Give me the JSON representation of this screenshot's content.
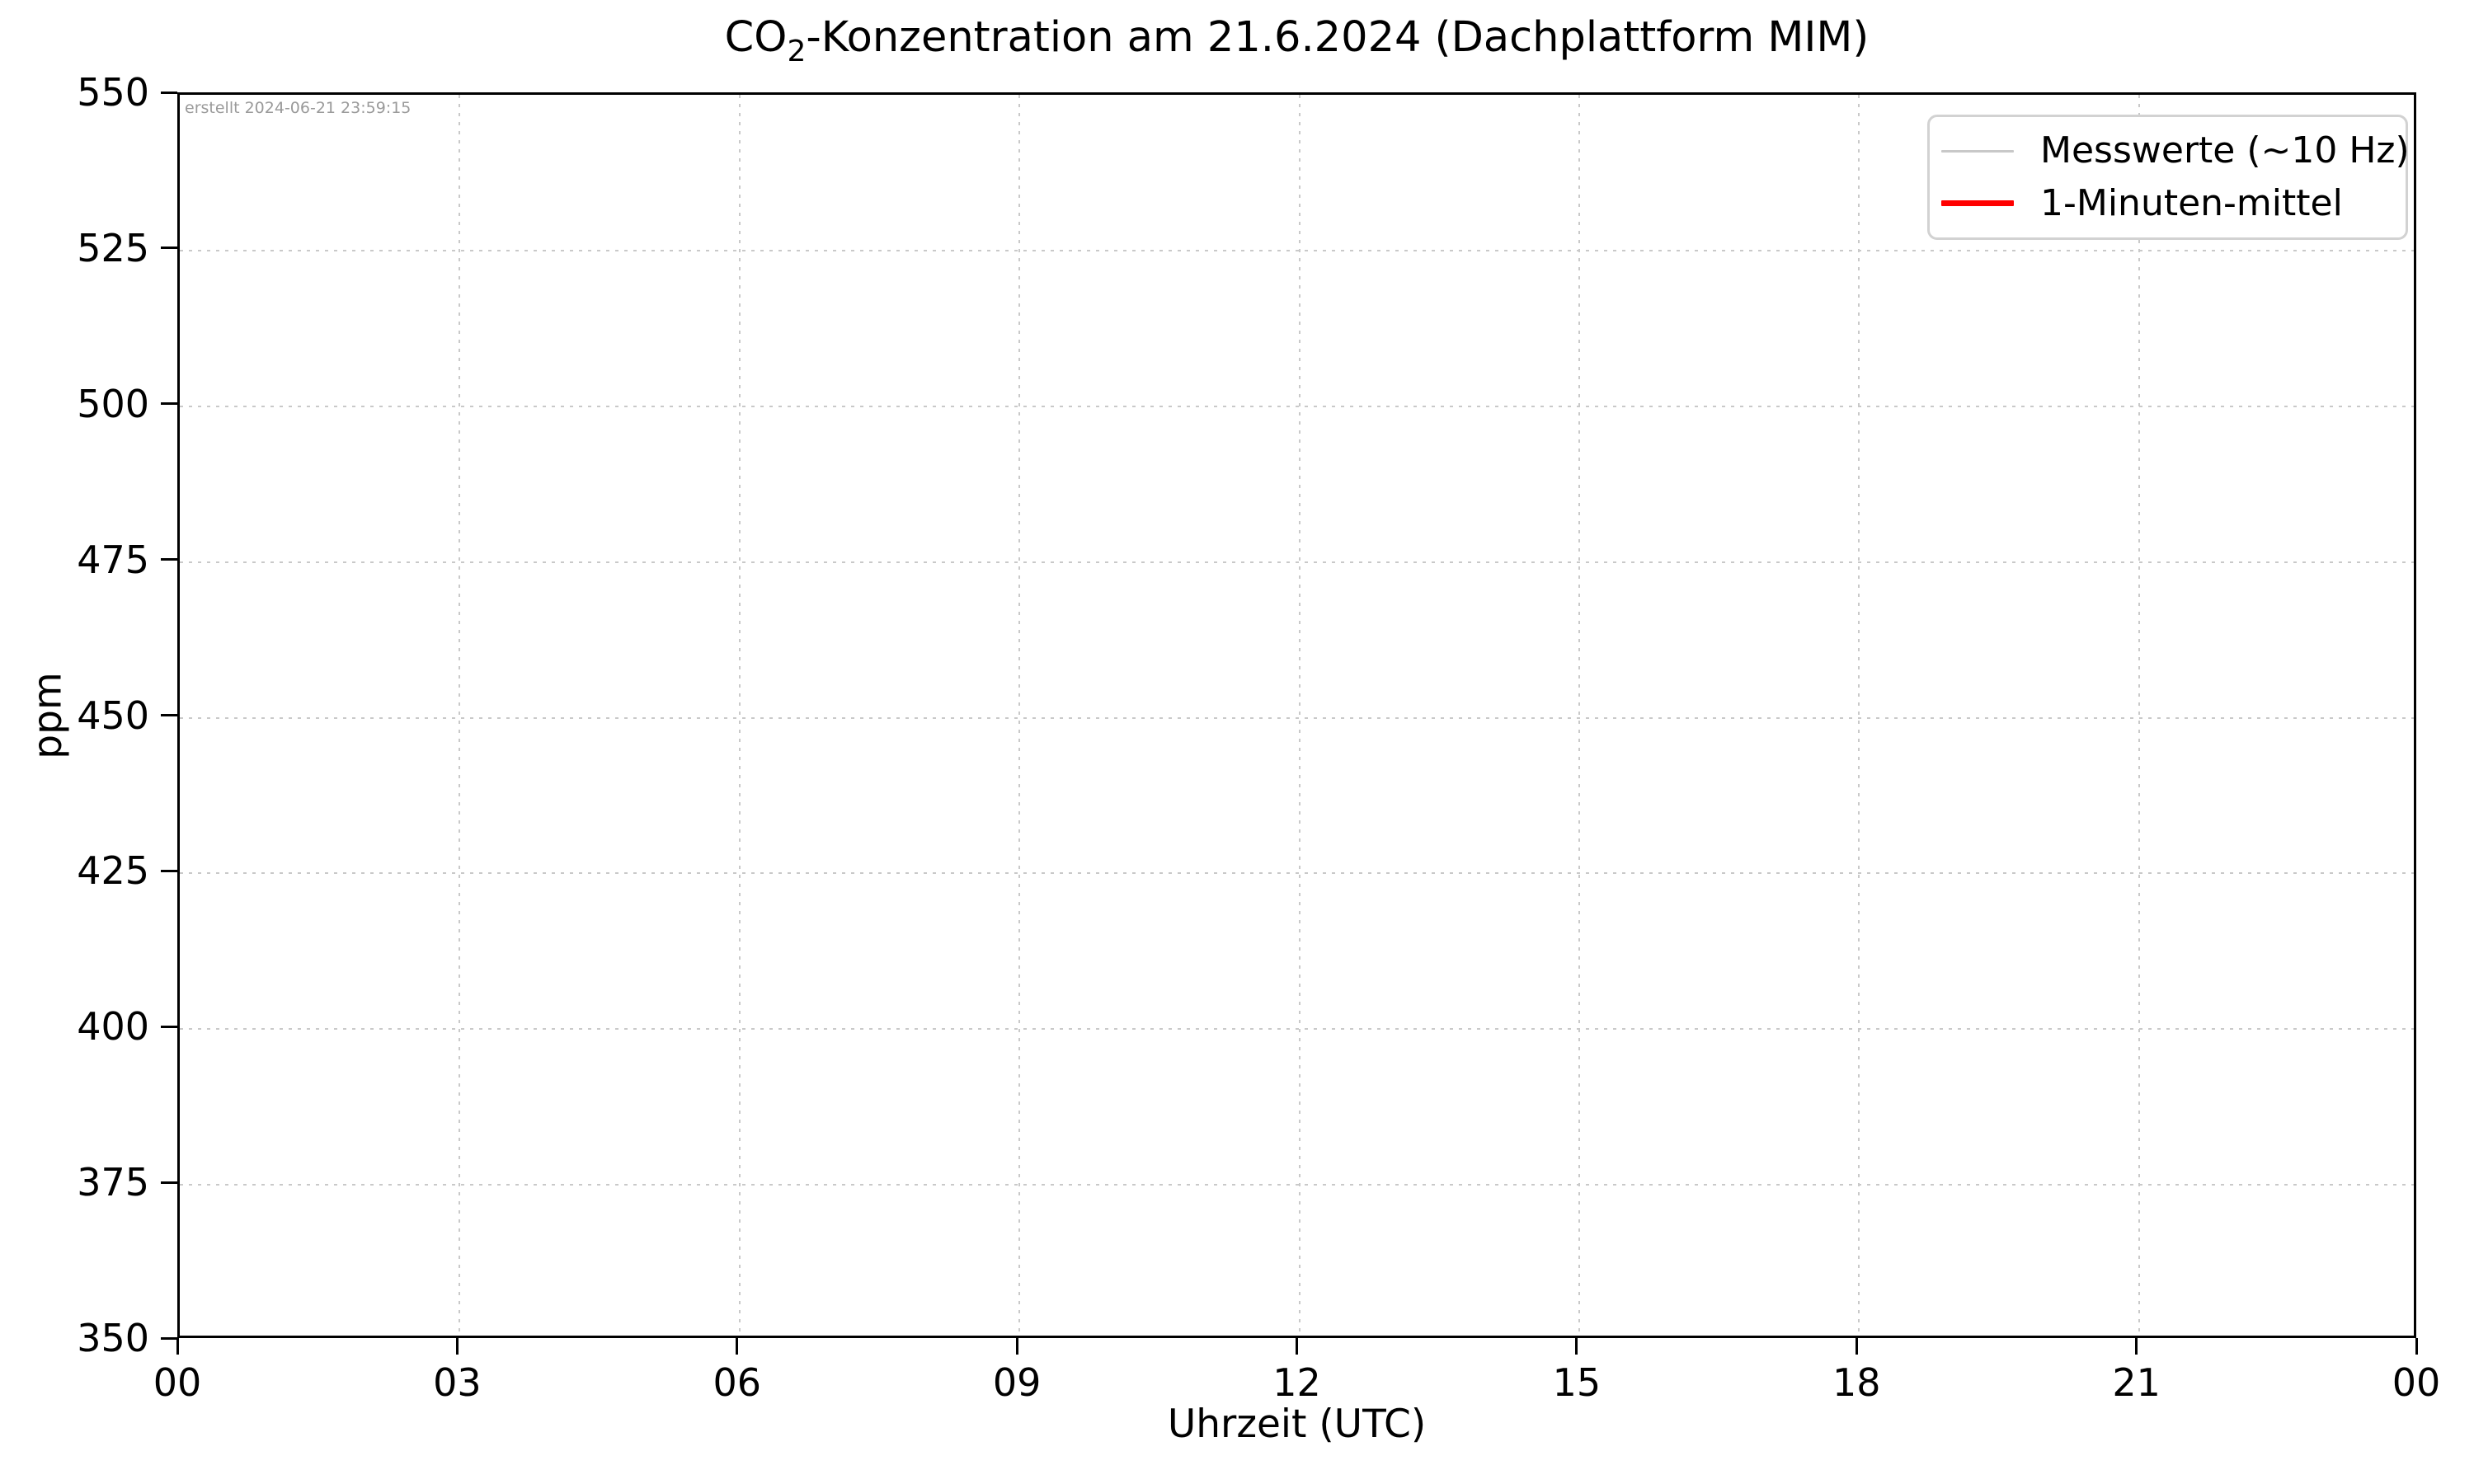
{
  "figure": {
    "title_prefix": "CO",
    "title_subscript": "2",
    "title_suffix": "-Konzentration am 21.6.2024 (Dachplattform MIM)",
    "created_note": "erstellt 2024-06-21 23:59:15"
  },
  "legend": {
    "items": [
      {
        "label": "Messwerte (~10 Hz)",
        "color": "#c8c8c8",
        "thickness": 3
      },
      {
        "label": "1-Minuten-mittel",
        "color": "#ff0000",
        "thickness": 7
      }
    ]
  },
  "chart_data": {
    "type": "line",
    "title": "CO2-Konzentration am 21.6.2024 (Dachplattform MIM)",
    "xlabel": "Uhrzeit (UTC)",
    "ylabel": "ppm",
    "x_tick_labels": [
      "00",
      "03",
      "06",
      "09",
      "12",
      "15",
      "18",
      "21",
      "00"
    ],
    "x_tick_hours": [
      0,
      3,
      6,
      9,
      12,
      15,
      18,
      21,
      24
    ],
    "xlim_hours": [
      0,
      24
    ],
    "y_ticks": [
      350,
      375,
      400,
      425,
      450,
      475,
      500,
      525,
      550
    ],
    "ylim": [
      350,
      550
    ],
    "grid": {
      "style": "dotted",
      "color": "#c9c9c9"
    },
    "annotation": "erstellt 2024-06-21 23:59:15",
    "legend_position": "upper right",
    "series": [
      {
        "name": "Messwerte (~10 Hz)",
        "color": "#c8c8c8",
        "x": [],
        "y": []
      },
      {
        "name": "1-Minuten-mittel",
        "color": "#ff0000",
        "x": [],
        "y": []
      }
    ]
  }
}
